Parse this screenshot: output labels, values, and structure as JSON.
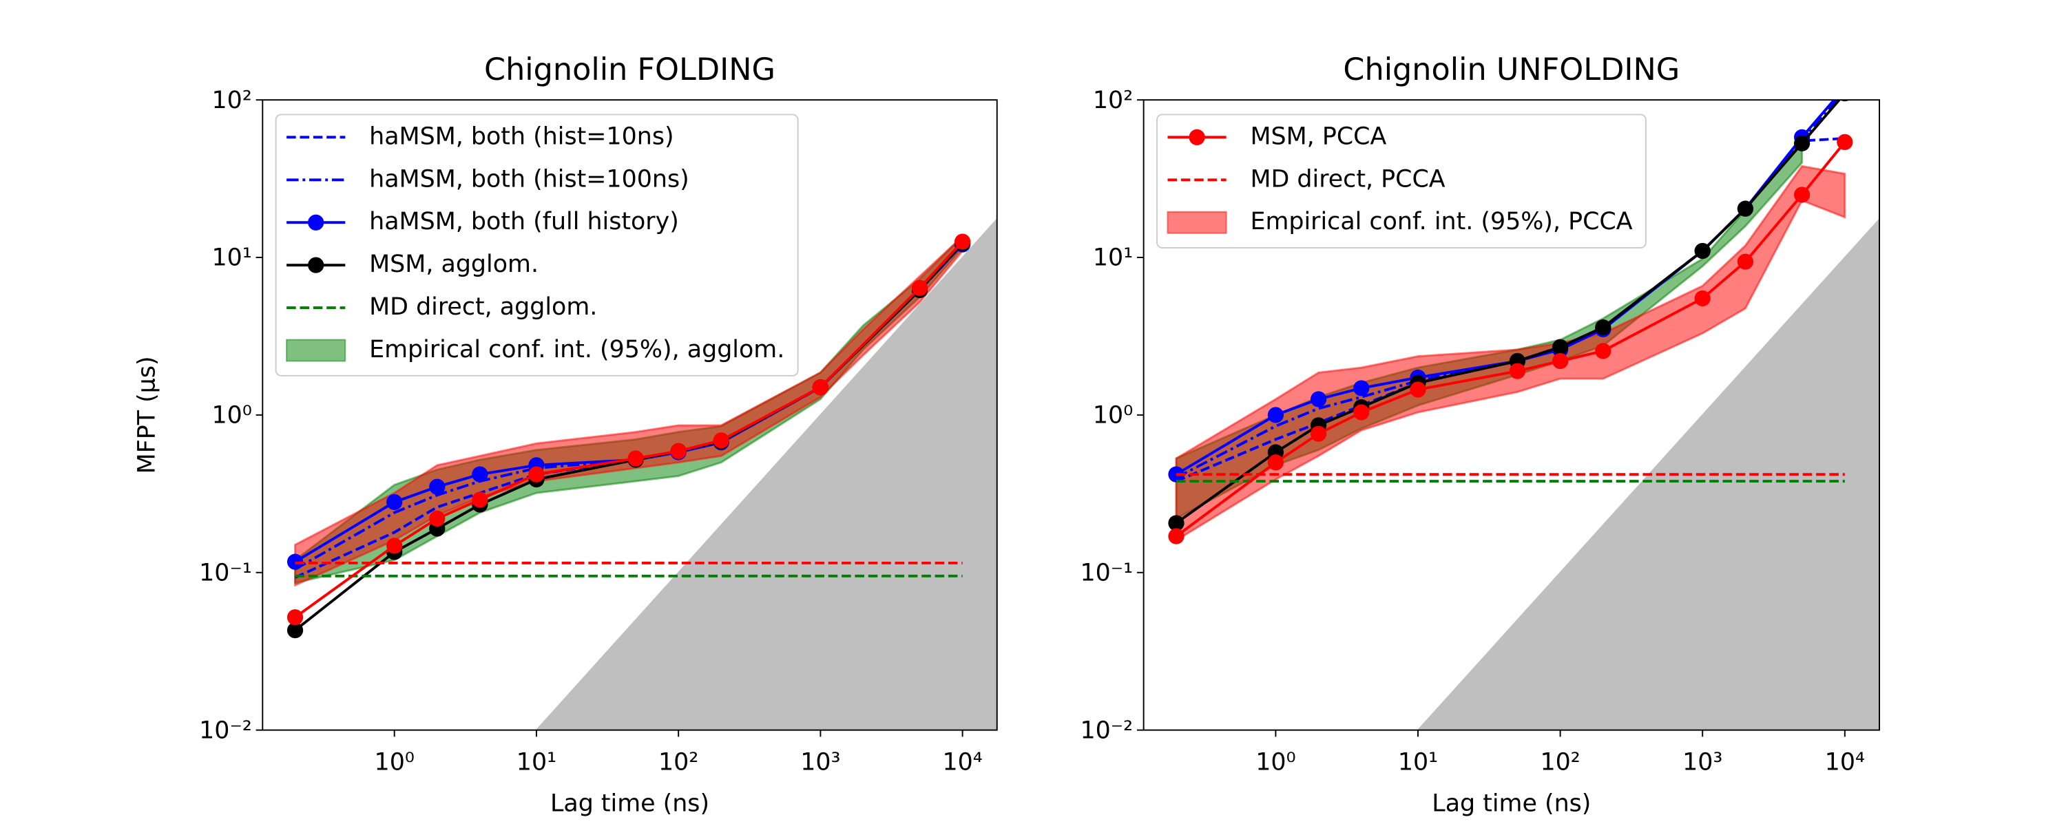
{
  "chart_data": [
    {
      "type": "line",
      "title": "Chignolin FOLDING",
      "x_label": "Lag time (ns)",
      "y_label": "MFPT (μs)",
      "xscale": "log",
      "yscale": "log",
      "xlim": [
        0.118,
        17500
      ],
      "ylim": [
        0.01,
        100
      ],
      "xticks": [
        {
          "value": 1,
          "label": "10⁰"
        },
        {
          "value": 10,
          "label": "10¹"
        },
        {
          "value": 100,
          "label": "10²"
        },
        {
          "value": 1000,
          "label": "10³"
        },
        {
          "value": 10000,
          "label": "10⁴"
        }
      ],
      "yticks": [
        {
          "value": 0.01,
          "label": "10⁻²"
        },
        {
          "value": 0.1,
          "label": "10⁻¹"
        },
        {
          "value": 1,
          "label": "10⁰"
        },
        {
          "value": 10,
          "label": "10¹"
        },
        {
          "value": 100,
          "label": "10²"
        }
      ],
      "legend_loc": "upper left",
      "shade": {
        "color": "#bfbfbf",
        "x": [
          10,
          17500
        ],
        "y": [
          0.01,
          17.5
        ]
      },
      "bands": [
        {
          "name": "Empirical conf. int. (95%), agglom.",
          "color": "#008000",
          "x": [
            0.2,
            1,
            2,
            4,
            10,
            50,
            100,
            200,
            1000,
            2000,
            5000,
            10000
          ],
          "lower": [
            0.086,
            0.12,
            0.17,
            0.24,
            0.32,
            0.38,
            0.41,
            0.5,
            1.26,
            2.6,
            5.6,
            11.5
          ],
          "upper": [
            0.12,
            0.36,
            0.45,
            0.52,
            0.6,
            0.7,
            0.78,
            0.85,
            1.86,
            3.7,
            7.3,
            13.6
          ]
        },
        {
          "color": "#ff0000",
          "x": [
            0.2,
            1,
            2,
            4,
            10,
            50,
            100,
            200,
            1000,
            2000,
            5000,
            10000
          ],
          "lower": [
            0.083,
            0.16,
            0.23,
            0.3,
            0.38,
            0.46,
            0.5,
            0.55,
            1.3,
            2.4,
            5.2,
            11
          ],
          "upper": [
            0.15,
            0.32,
            0.48,
            0.55,
            0.66,
            0.78,
            0.86,
            0.86,
            1.86,
            3.5,
            7.6,
            13.6
          ]
        }
      ],
      "series": [
        {
          "name": "haMSM, both (hist=10ns)",
          "color": "#0000ff",
          "style": "dashed",
          "marker": false,
          "x": [
            0.2,
            1,
            2,
            4,
            10,
            50,
            100,
            200,
            1000,
            5000,
            10000
          ],
          "values": [
            0.093,
            0.18,
            0.26,
            0.32,
            0.42,
            0.52,
            0.58,
            0.67,
            1.5,
            6.2,
            12.1
          ]
        },
        {
          "name": "haMSM, both (hist=100ns)",
          "color": "#0000ff",
          "style": "dashdot",
          "marker": false,
          "x": [
            0.2,
            1,
            2,
            4,
            10,
            50,
            100,
            200,
            1000,
            5000,
            10000
          ],
          "values": [
            0.105,
            0.24,
            0.31,
            0.38,
            0.46,
            0.52,
            0.58,
            0.67,
            1.5,
            6.2,
            12.1
          ]
        },
        {
          "name": "haMSM, both (full history)",
          "color": "#0000ff",
          "style": "solid",
          "marker": true,
          "x": [
            0.2,
            1,
            2,
            4,
            10,
            50,
            100,
            200,
            1000,
            5000,
            10000
          ],
          "values": [
            0.117,
            0.28,
            0.35,
            0.42,
            0.48,
            0.52,
            0.58,
            0.67,
            1.5,
            6.3,
            12.1
          ]
        },
        {
          "name": "MSM, agglom.",
          "color": "#000000",
          "style": "solid",
          "marker": true,
          "x": [
            0.2,
            1,
            2,
            4,
            10,
            50,
            100,
            200,
            1000,
            5000,
            10000
          ],
          "values": [
            0.043,
            0.135,
            0.19,
            0.27,
            0.39,
            0.52,
            0.59,
            0.68,
            1.5,
            6.2,
            12.3
          ]
        },
        {
          "name": "MD direct, agglom.",
          "color": "#008000",
          "style": "dashed",
          "marker": false,
          "x": [
            0.2,
            10000
          ],
          "values": [
            0.095,
            0.095
          ]
        },
        {
          "color": "#ff0000",
          "style": "dashed",
          "marker": false,
          "x": [
            0.2,
            10000
          ],
          "values": [
            0.115,
            0.115
          ]
        },
        {
          "color": "#ff0000",
          "style": "solid",
          "marker": true,
          "x": [
            0.2,
            1,
            2,
            4,
            10,
            50,
            100,
            200,
            1000,
            5000,
            10000
          ],
          "values": [
            0.052,
            0.148,
            0.22,
            0.29,
            0.42,
            0.53,
            0.59,
            0.69,
            1.5,
            6.4,
            12.6
          ]
        }
      ]
    },
    {
      "type": "line",
      "title": "Chignolin UNFOLDING",
      "x_label": "Lag time (ns)",
      "xscale": "log",
      "yscale": "log",
      "xlim": [
        0.118,
        17500
      ],
      "ylim": [
        0.01,
        100
      ],
      "xticks": [
        {
          "value": 1,
          "label": "10⁰"
        },
        {
          "value": 10,
          "label": "10¹"
        },
        {
          "value": 100,
          "label": "10²"
        },
        {
          "value": 1000,
          "label": "10³"
        },
        {
          "value": 10000,
          "label": "10⁴"
        }
      ],
      "yticks": [
        {
          "value": 0.01,
          "label": "10⁻²"
        },
        {
          "value": 0.1,
          "label": "10⁻¹"
        },
        {
          "value": 1,
          "label": "10⁰"
        },
        {
          "value": 10,
          "label": "10¹"
        },
        {
          "value": 100,
          "label": "10²"
        }
      ],
      "legend_loc": "upper left",
      "shade": {
        "color": "#bfbfbf",
        "x": [
          10,
          17500
        ],
        "y": [
          0.01,
          17.5
        ]
      },
      "bands": [
        {
          "color": "#008000",
          "x": [
            0.2,
            1,
            2,
            4,
            10,
            50,
            100,
            200,
            1000,
            2000,
            5000
          ],
          "lower": [
            0.22,
            0.48,
            0.6,
            0.82,
            1.15,
            1.8,
            2.2,
            2.75,
            8.8,
            15.8,
            40
          ],
          "upper": [
            0.53,
            1.0,
            1.3,
            1.6,
            2.0,
            2.6,
            3.0,
            4.1,
            9.8,
            20,
            56
          ]
        },
        {
          "name": "Empirical conf. int. (95%), PCCA",
          "color": "#ff0000",
          "x": [
            0.2,
            1,
            2,
            4,
            10,
            50,
            100,
            200,
            1000,
            2000,
            5000,
            10000
          ],
          "lower": [
            0.16,
            0.39,
            0.55,
            0.8,
            1.04,
            1.4,
            1.7,
            1.7,
            3.3,
            4.75,
            23,
            18
          ],
          "upper": [
            0.53,
            1.26,
            1.86,
            2.0,
            2.36,
            2.6,
            2.86,
            3.3,
            6.6,
            11.9,
            38,
            34
          ]
        }
      ],
      "series": [
        {
          "color": "#0000ff",
          "style": "dashed",
          "marker": false,
          "x": [
            0.2,
            1,
            2,
            4,
            10,
            50,
            100,
            200,
            1000,
            2000,
            5000,
            10000
          ],
          "values": [
            0.38,
            0.7,
            0.89,
            1.15,
            1.6,
            2.2,
            2.7,
            3.6,
            11,
            20.4,
            55,
            57
          ]
        },
        {
          "color": "#0000ff",
          "style": "dashdot",
          "marker": false,
          "x": [
            0.2,
            1,
            2,
            4,
            10,
            50,
            100,
            200,
            1000,
            2000,
            5000,
            10000
          ],
          "values": [
            0.4,
            0.85,
            1.1,
            1.3,
            1.65,
            2.2,
            2.7,
            3.6,
            11,
            20.4,
            56,
            115
          ]
        },
        {
          "color": "#0000ff",
          "style": "solid",
          "marker": true,
          "x": [
            0.2,
            1,
            2,
            4,
            10,
            50,
            100,
            200,
            1000,
            2000,
            5000,
            10000
          ],
          "values": [
            0.42,
            1.0,
            1.26,
            1.48,
            1.73,
            2.2,
            2.6,
            3.5,
            11,
            20.4,
            58,
            120
          ]
        },
        {
          "color": "#000000",
          "style": "solid",
          "marker": true,
          "x": [
            0.2,
            1,
            2,
            4,
            10,
            50,
            100,
            200,
            1000,
            2000,
            5000,
            10000
          ],
          "values": [
            0.206,
            0.58,
            0.86,
            1.12,
            1.6,
            2.2,
            2.7,
            3.6,
            11,
            20.4,
            53,
            110
          ]
        },
        {
          "color": "#008000",
          "style": "dashed",
          "marker": false,
          "x": [
            0.2,
            10000
          ],
          "values": [
            0.38,
            0.38
          ]
        },
        {
          "name": "MSM, PCCA",
          "color": "#ff0000",
          "style": "solid",
          "marker": true,
          "x": [
            0.2,
            1,
            2,
            4,
            10,
            50,
            100,
            200,
            1000,
            2000,
            5000,
            10000
          ],
          "values": [
            0.17,
            0.5,
            0.76,
            1.04,
            1.45,
            1.9,
            2.2,
            2.55,
            5.5,
            9.4,
            25,
            54
          ]
        },
        {
          "name": "MD direct, PCCA",
          "color": "#ff0000",
          "style": "dashed",
          "marker": false,
          "x": [
            0.2,
            10000
          ],
          "values": [
            0.42,
            0.42
          ]
        }
      ]
    }
  ]
}
